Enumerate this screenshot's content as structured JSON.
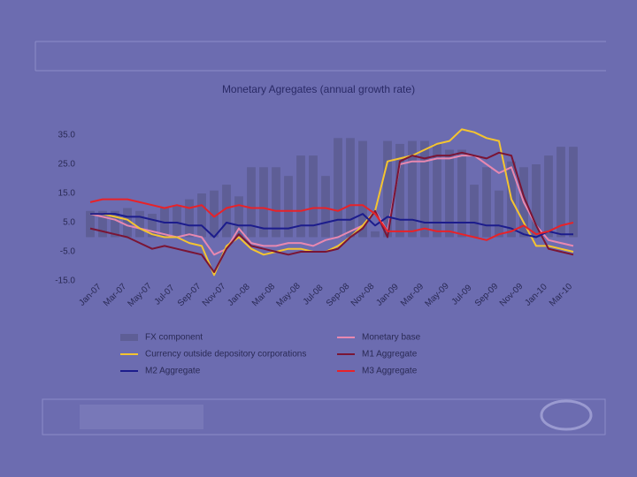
{
  "chart_data": {
    "type": "bar_line",
    "title": "Monetary Agregates (annual growth rate)",
    "categories": [
      "Jan-07",
      null,
      "Mar-07",
      null,
      "May-07",
      null,
      "Jul-07",
      null,
      "Sep-07",
      null,
      "Nov-07",
      null,
      "Jan-08",
      null,
      "Mar-08",
      null,
      "May-08",
      null,
      "Jul-08",
      null,
      "Sep-08",
      null,
      "Nov-08",
      null,
      "Jan-09",
      null,
      "Mar-09",
      null,
      "May-09",
      null,
      "Jul-09",
      null,
      "Sep-09",
      null,
      "Nov-09",
      null,
      "Jan-10",
      null,
      "Mar-10",
      null
    ],
    "ylim": [
      -15,
      35
    ],
    "yticks": [
      {
        "value": -15,
        "label": "-15.0"
      },
      {
        "value": -5,
        "label": "-5.0"
      },
      {
        "value": 5,
        "label": "5.0"
      },
      {
        "value": 15,
        "label": "15.0"
      },
      {
        "value": 25,
        "label": "25.0"
      },
      {
        "value": 35,
        "label": "35.0"
      }
    ],
    "series": [
      {
        "name": "FX component",
        "kind": "bar",
        "color": "#5e5e96",
        "values": [
          9,
          9,
          9,
          10,
          9,
          8,
          10,
          11,
          13,
          15,
          16,
          18,
          14,
          24,
          24,
          24,
          21,
          28,
          28,
          21,
          34,
          34,
          33,
          2,
          33,
          32,
          33,
          33,
          32,
          30,
          30,
          18,
          24,
          16,
          26,
          24,
          25,
          28,
          31,
          31
        ]
      },
      {
        "name": "Monetary base",
        "kind": "line",
        "color": "#e888b0",
        "values": [
          8,
          7,
          6,
          4,
          3,
          2,
          1,
          0,
          1,
          0,
          -6,
          -4,
          3,
          -2,
          -3,
          -3,
          -2,
          -2,
          -3,
          -1,
          0,
          2,
          4,
          9,
          2,
          25,
          26,
          26,
          27,
          27,
          28,
          28,
          25,
          22,
          24,
          12,
          4,
          -1,
          -2,
          -3
        ]
      },
      {
        "name": "Currency outside depository corporations",
        "kind": "line",
        "color": "#f4c430",
        "values": [
          8,
          8,
          7,
          6,
          3,
          1,
          0,
          0,
          -2,
          -3,
          -13,
          -3,
          0,
          -4,
          -6,
          -5,
          -4,
          -4,
          -5,
          -5,
          -3,
          0,
          4,
          9,
          26,
          27,
          28,
          30,
          32,
          33,
          37,
          36,
          34,
          33,
          13,
          5,
          -3,
          -3,
          -4,
          -5
        ]
      },
      {
        "name": "M1 Aggregate",
        "kind": "line",
        "color": "#7a1535",
        "values": [
          3,
          2,
          1,
          0,
          -2,
          -4,
          -3,
          -4,
          -5,
          -6,
          -12,
          -4,
          1,
          -3,
          -4,
          -5,
          -6,
          -5,
          -5,
          -5,
          -4,
          0,
          3,
          9,
          0,
          26,
          28,
          27,
          28,
          28,
          29,
          28,
          27,
          29,
          28,
          14,
          4,
          -4,
          -5,
          -6
        ]
      },
      {
        "name": "M2 Aggregate",
        "kind": "line",
        "color": "#1c1c8c",
        "values": [
          8,
          8,
          8,
          7,
          7,
          6,
          5,
          5,
          4,
          4,
          0,
          5,
          4,
          4,
          3,
          3,
          3,
          4,
          4,
          5,
          6,
          6,
          8,
          4,
          7,
          6,
          6,
          5,
          5,
          5,
          5,
          5,
          4,
          4,
          3,
          1,
          0,
          2,
          1,
          1
        ]
      },
      {
        "name": "M3 Aggregate",
        "kind": "line",
        "color": "#e82228",
        "values": [
          12,
          13,
          13,
          13,
          12,
          11,
          10,
          11,
          10,
          11,
          7,
          10,
          11,
          10,
          10,
          9,
          9,
          9,
          10,
          10,
          9,
          11,
          11,
          8,
          2,
          2,
          2,
          3,
          2,
          2,
          1,
          0,
          -1,
          1,
          2,
          4,
          1,
          2,
          4,
          5
        ]
      }
    ]
  }
}
